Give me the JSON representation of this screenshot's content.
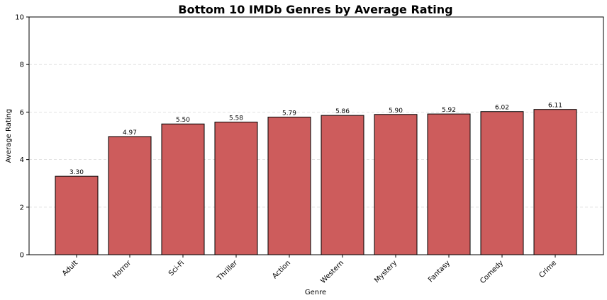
{
  "chart_data": {
    "type": "bar",
    "title": "Bottom 10 IMDb Genres by Average Rating",
    "xlabel": "Genre",
    "ylabel": "Average Rating",
    "categories": [
      "Adult",
      "Horror",
      "Sci-Fi",
      "Thriller",
      "Action",
      "Western",
      "Mystery",
      "Fantasy",
      "Comedy",
      "Crime"
    ],
    "values": [
      3.3,
      4.97,
      5.5,
      5.58,
      5.79,
      5.86,
      5.9,
      5.92,
      6.02,
      6.11
    ],
    "value_labels": [
      "3.30",
      "4.97",
      "5.50",
      "5.58",
      "5.79",
      "5.86",
      "5.90",
      "5.92",
      "6.02",
      "6.11"
    ],
    "ylim": [
      0,
      10
    ],
    "yticks": [
      0,
      2,
      4,
      6,
      8,
      10
    ],
    "grid": "y-dashed",
    "bar_color": "#cd5c5c",
    "bar_edge_color": "#000000"
  }
}
